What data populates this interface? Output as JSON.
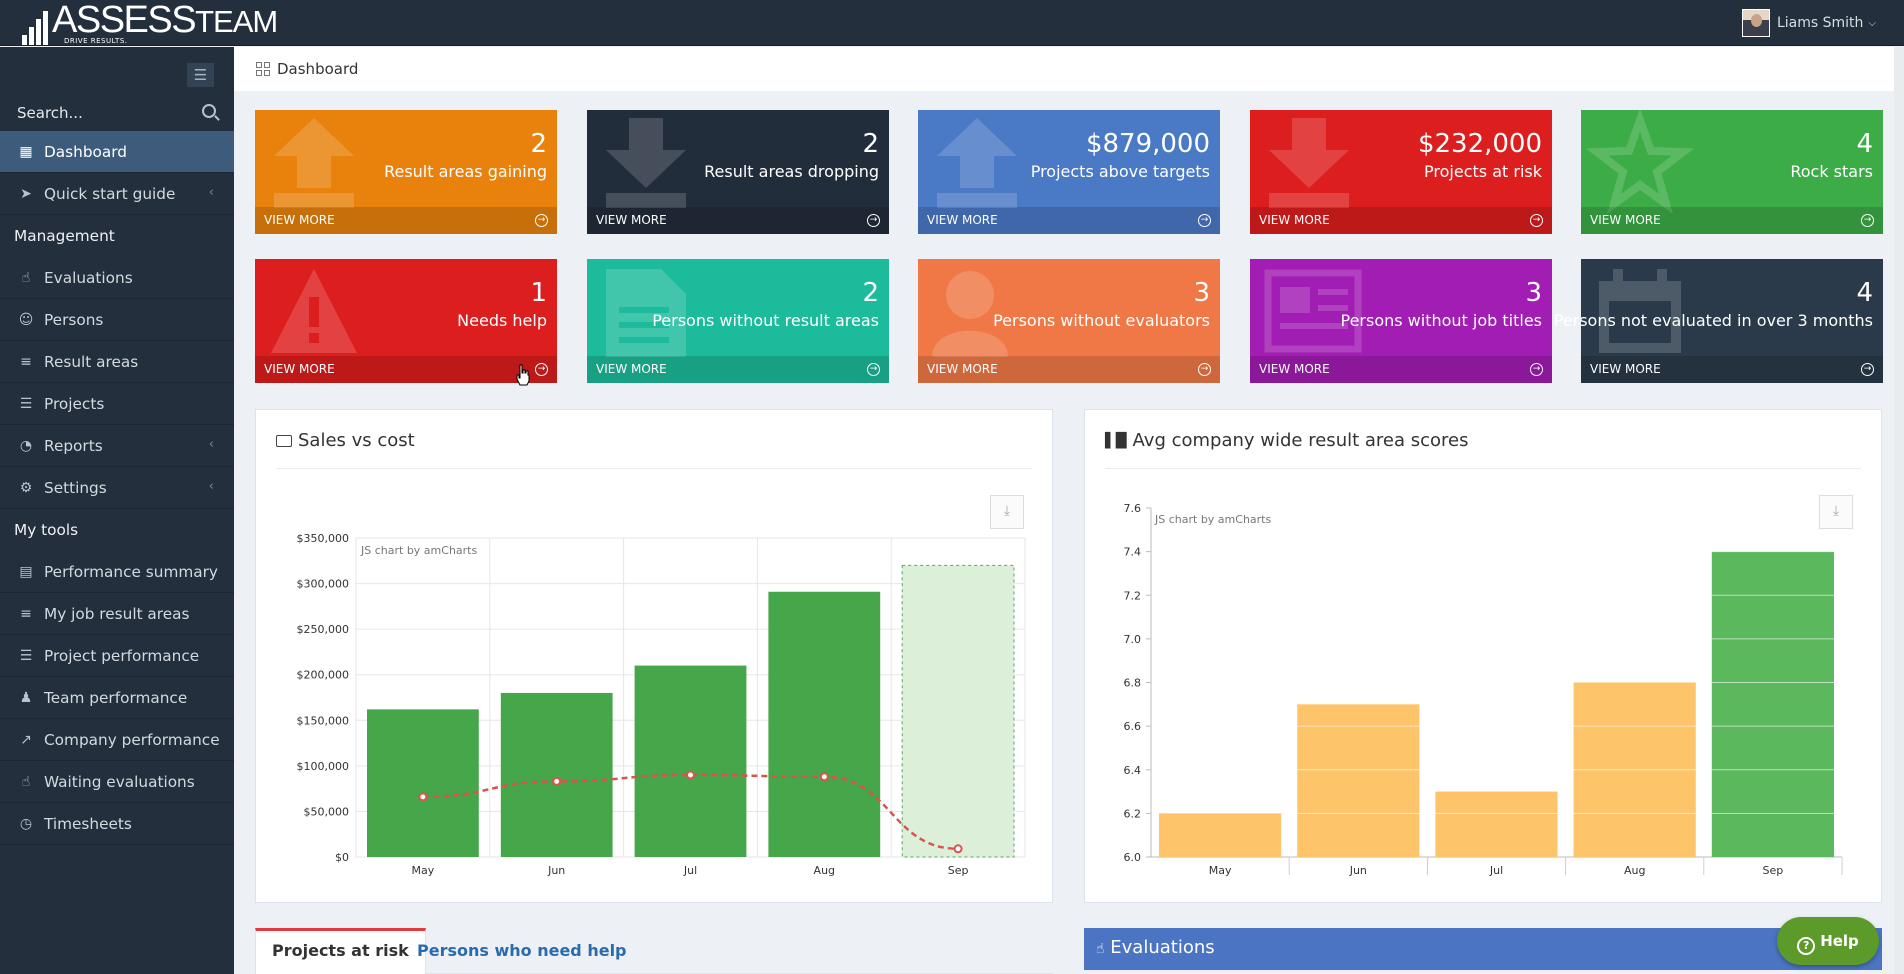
{
  "app": {
    "brand_main": "ASSESS",
    "brand_sub": "TEAM",
    "tagline": "DRIVE RESULTS."
  },
  "user": {
    "name": "Liams Smith"
  },
  "sidebar": {
    "search_placeholder": "Search...",
    "items": [
      {
        "label": "Dashboard",
        "icon": "dashboard-icon"
      },
      {
        "label": "Quick start guide",
        "icon": "paper-plane-icon"
      },
      {
        "label": "Management",
        "type": "header"
      },
      {
        "label": "Evaluations",
        "icon": "thumbs-up-icon"
      },
      {
        "label": "Persons",
        "icon": "users-icon"
      },
      {
        "label": "Result areas",
        "icon": "sliders-icon"
      },
      {
        "label": "Projects",
        "icon": "list-icon"
      },
      {
        "label": "Reports",
        "icon": "gauge-icon"
      },
      {
        "label": "Settings",
        "icon": "gear-icon"
      },
      {
        "label": "My tools",
        "type": "header"
      },
      {
        "label": "Performance summary",
        "icon": "summary-icon"
      },
      {
        "label": "My job result areas",
        "icon": "sliders-icon"
      },
      {
        "label": "Project performance",
        "icon": "list-icon"
      },
      {
        "label": "Team performance",
        "icon": "team-icon"
      },
      {
        "label": "Company performance",
        "icon": "line-chart-icon"
      },
      {
        "label": "Waiting evaluations",
        "icon": "thumbs-up-icon"
      },
      {
        "label": "Timesheets",
        "icon": "clock-icon"
      }
    ]
  },
  "breadcrumb": {
    "label": "Dashboard"
  },
  "tiles": [
    {
      "value": "2",
      "label": "Result areas gaining",
      "color": "#e8820c",
      "footer": "VIEW MORE"
    },
    {
      "value": "2",
      "label": "Result areas dropping",
      "color": "#222d3b",
      "footer": "VIEW MORE"
    },
    {
      "value": "$879,000",
      "label": "Projects above targets",
      "color": "#4a79c5",
      "footer": "VIEW MORE"
    },
    {
      "value": "$232,000",
      "label": "Projects at risk",
      "color": "#dd1e1e",
      "footer": "VIEW MORE"
    },
    {
      "value": "4",
      "label": "Rock stars",
      "color": "#3cac47",
      "footer": "VIEW MORE"
    },
    {
      "value": "1",
      "label": "Needs help",
      "color": "#dd1e1e",
      "footer": "VIEW MORE"
    },
    {
      "value": "2",
      "label": "Persons without result areas",
      "color": "#1cbb9b",
      "footer": "VIEW MORE"
    },
    {
      "value": "3",
      "label": "Persons without evaluators",
      "color": "#f07846",
      "footer": "VIEW MORE"
    },
    {
      "value": "3",
      "label": "Persons without job titles",
      "color": "#a11db3",
      "footer": "VIEW MORE"
    },
    {
      "value": "4",
      "label": "Persons not evaluated in over 3 months",
      "color": "#2b3a4a",
      "footer": "VIEW MORE"
    }
  ],
  "sales_card": {
    "title": "Sales vs cost",
    "credit": "JS chart by amCharts"
  },
  "scores_card": {
    "title": "Avg company wide result area scores",
    "credit": "JS chart by amCharts"
  },
  "chart_data": [
    {
      "type": "bar",
      "title": "Sales vs cost",
      "categories": [
        "May",
        "Jun",
        "Jul",
        "Aug",
        "Sep"
      ],
      "series": [
        {
          "values": [
            162000,
            180000,
            210000,
            291000,
            320000
          ],
          "color": "#46a64a",
          "projected_last": true
        },
        {
          "type": "line",
          "values": [
            66000,
            83000,
            90000,
            88000,
            9000
          ],
          "color": "#d9534f",
          "dashed": true
        }
      ],
      "ylim": [
        0,
        350000
      ],
      "yticks": [
        "$0",
        "$50,000",
        "$100,000",
        "$150,000",
        "$200,000",
        "$250,000",
        "$300,000",
        "$350,000"
      ],
      "grid": true
    },
    {
      "type": "bar",
      "title": "Avg company wide result area scores",
      "categories": [
        "May",
        "Jun",
        "Jul",
        "Aug",
        "Sep"
      ],
      "values": [
        6.2,
        6.7,
        6.3,
        6.8,
        7.4
      ],
      "colors": [
        "#fdc46a",
        "#fdc46a",
        "#fdc46a",
        "#fdc46a",
        "#5cb85c"
      ],
      "ylim": [
        6.0,
        7.6
      ],
      "yticks": [
        "6.0",
        "6.2",
        "6.4",
        "6.6",
        "6.8",
        "7.0",
        "7.2",
        "7.4",
        "7.6"
      ],
      "grid": false
    }
  ],
  "bottom_tabs": [
    "Projects at risk",
    "Persons who need help"
  ],
  "evaluations_header": "Evaluations",
  "help_button": "Help"
}
